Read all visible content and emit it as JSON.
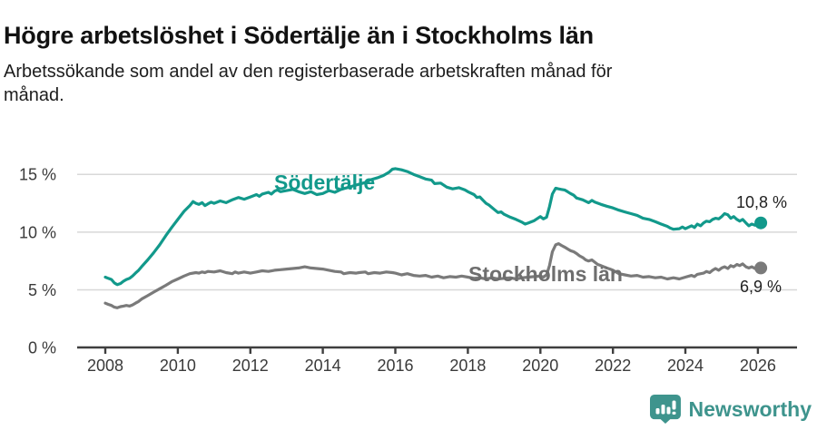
{
  "footer": {
    "brand": "Newsworthy"
  },
  "chart_data": {
    "type": "line",
    "title": "Högre arbetslöshet i Södertälje än i Stockholms län",
    "subtitle_lines": [
      "Arbetssökande som andel av den registerbaserade arbetskraften månad för",
      "månad."
    ],
    "xlabel": "",
    "ylabel": "",
    "xlim": [
      2007.2,
      2027.1
    ],
    "ylim": [
      0,
      17.5
    ],
    "grid": "horizontal",
    "legend_position": "inline-labels",
    "y_ticks": [
      {
        "value": 0,
        "label": "0 %"
      },
      {
        "value": 5,
        "label": "5 %"
      },
      {
        "value": 10,
        "label": "10 %"
      },
      {
        "value": 15,
        "label": "15 %"
      }
    ],
    "x_ticks": [
      2008,
      2010,
      2012,
      2014,
      2016,
      2018,
      2020,
      2022,
      2024,
      2026
    ],
    "series": [
      {
        "name": "Södertälje",
        "color": "#12998b",
        "label_color": "#12998b",
        "end_label": "10,8 %",
        "end_value": 10.8,
        "points": [
          [
            2008.0,
            6.1
          ],
          [
            2008.08,
            6.0
          ],
          [
            2008.17,
            5.9
          ],
          [
            2008.25,
            5.6
          ],
          [
            2008.33,
            5.45
          ],
          [
            2008.42,
            5.55
          ],
          [
            2008.5,
            5.75
          ],
          [
            2008.58,
            5.9
          ],
          [
            2008.67,
            6.0
          ],
          [
            2008.75,
            6.2
          ],
          [
            2008.83,
            6.45
          ],
          [
            2008.92,
            6.7
          ],
          [
            2009.0,
            7.0
          ],
          [
            2009.17,
            7.6
          ],
          [
            2009.33,
            8.2
          ],
          [
            2009.5,
            8.9
          ],
          [
            2009.67,
            9.7
          ],
          [
            2009.83,
            10.4
          ],
          [
            2010.0,
            11.1
          ],
          [
            2010.17,
            11.8
          ],
          [
            2010.33,
            12.3
          ],
          [
            2010.42,
            12.65
          ],
          [
            2010.5,
            12.5
          ],
          [
            2010.58,
            12.4
          ],
          [
            2010.67,
            12.55
          ],
          [
            2010.75,
            12.3
          ],
          [
            2010.83,
            12.45
          ],
          [
            2010.92,
            12.6
          ],
          [
            2011.0,
            12.5
          ],
          [
            2011.17,
            12.7
          ],
          [
            2011.33,
            12.55
          ],
          [
            2011.5,
            12.8
          ],
          [
            2011.67,
            13.0
          ],
          [
            2011.83,
            12.85
          ],
          [
            2012.0,
            13.05
          ],
          [
            2012.17,
            13.25
          ],
          [
            2012.25,
            13.1
          ],
          [
            2012.33,
            13.3
          ],
          [
            2012.5,
            13.45
          ],
          [
            2012.58,
            13.3
          ],
          [
            2012.67,
            13.55
          ],
          [
            2012.75,
            13.65
          ],
          [
            2012.83,
            13.5
          ],
          [
            2013.0,
            13.6
          ],
          [
            2013.17,
            13.7
          ],
          [
            2013.33,
            13.5
          ],
          [
            2013.5,
            13.35
          ],
          [
            2013.67,
            13.5
          ],
          [
            2013.83,
            13.25
          ],
          [
            2014.0,
            13.35
          ],
          [
            2014.17,
            13.6
          ],
          [
            2014.33,
            13.45
          ],
          [
            2014.5,
            13.7
          ],
          [
            2014.67,
            13.85
          ],
          [
            2014.83,
            14.0
          ],
          [
            2015.0,
            14.15
          ],
          [
            2015.17,
            14.3
          ],
          [
            2015.33,
            14.55
          ],
          [
            2015.5,
            14.7
          ],
          [
            2015.67,
            14.9
          ],
          [
            2015.83,
            15.2
          ],
          [
            2015.92,
            15.45
          ],
          [
            2016.0,
            15.5
          ],
          [
            2016.17,
            15.4
          ],
          [
            2016.33,
            15.25
          ],
          [
            2016.5,
            15.0
          ],
          [
            2016.67,
            14.8
          ],
          [
            2016.83,
            14.6
          ],
          [
            2017.0,
            14.5
          ],
          [
            2017.08,
            14.2
          ],
          [
            2017.25,
            14.25
          ],
          [
            2017.42,
            13.9
          ],
          [
            2017.58,
            13.75
          ],
          [
            2017.75,
            13.85
          ],
          [
            2017.92,
            13.65
          ],
          [
            2018.0,
            13.5
          ],
          [
            2018.17,
            13.25
          ],
          [
            2018.25,
            13.0
          ],
          [
            2018.33,
            13.05
          ],
          [
            2018.42,
            12.75
          ],
          [
            2018.5,
            12.5
          ],
          [
            2018.58,
            12.35
          ],
          [
            2018.75,
            11.9
          ],
          [
            2018.83,
            11.7
          ],
          [
            2018.92,
            11.75
          ],
          [
            2019.0,
            11.55
          ],
          [
            2019.17,
            11.3
          ],
          [
            2019.33,
            11.1
          ],
          [
            2019.5,
            10.85
          ],
          [
            2019.58,
            10.7
          ],
          [
            2019.67,
            10.8
          ],
          [
            2019.83,
            11.0
          ],
          [
            2020.0,
            11.35
          ],
          [
            2020.08,
            11.15
          ],
          [
            2020.17,
            11.3
          ],
          [
            2020.25,
            12.2
          ],
          [
            2020.33,
            13.3
          ],
          [
            2020.42,
            13.8
          ],
          [
            2020.5,
            13.75
          ],
          [
            2020.58,
            13.7
          ],
          [
            2020.67,
            13.65
          ],
          [
            2020.75,
            13.5
          ],
          [
            2020.83,
            13.35
          ],
          [
            2020.92,
            13.2
          ],
          [
            2021.0,
            12.95
          ],
          [
            2021.17,
            12.8
          ],
          [
            2021.33,
            12.55
          ],
          [
            2021.42,
            12.75
          ],
          [
            2021.5,
            12.6
          ],
          [
            2021.67,
            12.4
          ],
          [
            2021.83,
            12.25
          ],
          [
            2022.0,
            12.1
          ],
          [
            2022.17,
            11.9
          ],
          [
            2022.33,
            11.75
          ],
          [
            2022.5,
            11.6
          ],
          [
            2022.67,
            11.45
          ],
          [
            2022.83,
            11.2
          ],
          [
            2023.0,
            11.1
          ],
          [
            2023.17,
            10.9
          ],
          [
            2023.33,
            10.7
          ],
          [
            2023.5,
            10.5
          ],
          [
            2023.58,
            10.35
          ],
          [
            2023.67,
            10.25
          ],
          [
            2023.83,
            10.3
          ],
          [
            2023.92,
            10.45
          ],
          [
            2024.0,
            10.3
          ],
          [
            2024.17,
            10.55
          ],
          [
            2024.25,
            10.4
          ],
          [
            2024.33,
            10.7
          ],
          [
            2024.42,
            10.55
          ],
          [
            2024.5,
            10.8
          ],
          [
            2024.58,
            10.95
          ],
          [
            2024.67,
            10.9
          ],
          [
            2024.75,
            11.1
          ],
          [
            2024.83,
            11.2
          ],
          [
            2024.92,
            11.15
          ],
          [
            2025.0,
            11.35
          ],
          [
            2025.08,
            11.6
          ],
          [
            2025.17,
            11.5
          ],
          [
            2025.25,
            11.2
          ],
          [
            2025.33,
            11.35
          ],
          [
            2025.42,
            11.1
          ],
          [
            2025.5,
            10.95
          ],
          [
            2025.58,
            11.1
          ],
          [
            2025.67,
            10.8
          ],
          [
            2025.75,
            10.55
          ],
          [
            2025.83,
            10.7
          ],
          [
            2025.92,
            10.6
          ],
          [
            2026.08,
            10.8
          ]
        ]
      },
      {
        "name": "Stockholms län",
        "color": "#7a7a7a",
        "label_color": "#6e6e6e",
        "end_label": "6,9 %",
        "end_value": 6.9,
        "points": [
          [
            2008.0,
            3.85
          ],
          [
            2008.08,
            3.75
          ],
          [
            2008.17,
            3.65
          ],
          [
            2008.25,
            3.5
          ],
          [
            2008.33,
            3.45
          ],
          [
            2008.42,
            3.55
          ],
          [
            2008.5,
            3.6
          ],
          [
            2008.58,
            3.65
          ],
          [
            2008.67,
            3.6
          ],
          [
            2008.75,
            3.7
          ],
          [
            2008.83,
            3.85
          ],
          [
            2008.92,
            4.0
          ],
          [
            2009.0,
            4.2
          ],
          [
            2009.17,
            4.5
          ],
          [
            2009.33,
            4.8
          ],
          [
            2009.5,
            5.1
          ],
          [
            2009.67,
            5.4
          ],
          [
            2009.83,
            5.7
          ],
          [
            2010.0,
            5.95
          ],
          [
            2010.17,
            6.2
          ],
          [
            2010.33,
            6.4
          ],
          [
            2010.5,
            6.5
          ],
          [
            2010.58,
            6.45
          ],
          [
            2010.67,
            6.55
          ],
          [
            2010.75,
            6.5
          ],
          [
            2010.83,
            6.6
          ],
          [
            2011.0,
            6.55
          ],
          [
            2011.17,
            6.65
          ],
          [
            2011.33,
            6.5
          ],
          [
            2011.5,
            6.4
          ],
          [
            2011.58,
            6.55
          ],
          [
            2011.67,
            6.45
          ],
          [
            2011.83,
            6.55
          ],
          [
            2012.0,
            6.45
          ],
          [
            2012.17,
            6.55
          ],
          [
            2012.33,
            6.65
          ],
          [
            2012.5,
            6.6
          ],
          [
            2012.67,
            6.7
          ],
          [
            2012.83,
            6.75
          ],
          [
            2013.0,
            6.8
          ],
          [
            2013.17,
            6.85
          ],
          [
            2013.33,
            6.9
          ],
          [
            2013.5,
            7.0
          ],
          [
            2013.58,
            6.95
          ],
          [
            2013.67,
            6.9
          ],
          [
            2013.83,
            6.85
          ],
          [
            2014.0,
            6.8
          ],
          [
            2014.17,
            6.7
          ],
          [
            2014.33,
            6.6
          ],
          [
            2014.5,
            6.55
          ],
          [
            2014.58,
            6.4
          ],
          [
            2014.75,
            6.5
          ],
          [
            2014.92,
            6.45
          ],
          [
            2015.0,
            6.5
          ],
          [
            2015.17,
            6.55
          ],
          [
            2015.25,
            6.4
          ],
          [
            2015.42,
            6.5
          ],
          [
            2015.58,
            6.45
          ],
          [
            2015.75,
            6.55
          ],
          [
            2015.92,
            6.5
          ],
          [
            2016.0,
            6.45
          ],
          [
            2016.17,
            6.3
          ],
          [
            2016.33,
            6.4
          ],
          [
            2016.5,
            6.25
          ],
          [
            2016.67,
            6.2
          ],
          [
            2016.83,
            6.25
          ],
          [
            2017.0,
            6.1
          ],
          [
            2017.17,
            6.2
          ],
          [
            2017.33,
            6.05
          ],
          [
            2017.5,
            6.15
          ],
          [
            2017.67,
            6.1
          ],
          [
            2017.83,
            6.2
          ],
          [
            2018.0,
            6.1
          ],
          [
            2018.17,
            6.0
          ],
          [
            2018.33,
            6.05
          ],
          [
            2018.5,
            5.95
          ],
          [
            2018.67,
            6.05
          ],
          [
            2018.83,
            5.95
          ],
          [
            2019.0,
            6.0
          ],
          [
            2019.17,
            6.05
          ],
          [
            2019.33,
            5.95
          ],
          [
            2019.5,
            6.05
          ],
          [
            2019.67,
            6.1
          ],
          [
            2019.83,
            6.15
          ],
          [
            2020.0,
            6.2
          ],
          [
            2020.08,
            6.1
          ],
          [
            2020.17,
            6.3
          ],
          [
            2020.25,
            7.1
          ],
          [
            2020.33,
            8.3
          ],
          [
            2020.42,
            8.9
          ],
          [
            2020.5,
            9.0
          ],
          [
            2020.58,
            8.85
          ],
          [
            2020.67,
            8.7
          ],
          [
            2020.75,
            8.55
          ],
          [
            2020.83,
            8.4
          ],
          [
            2020.92,
            8.3
          ],
          [
            2021.0,
            8.15
          ],
          [
            2021.08,
            7.95
          ],
          [
            2021.17,
            7.8
          ],
          [
            2021.25,
            7.6
          ],
          [
            2021.33,
            7.5
          ],
          [
            2021.42,
            7.6
          ],
          [
            2021.5,
            7.4
          ],
          [
            2021.58,
            7.2
          ],
          [
            2021.67,
            7.1
          ],
          [
            2021.75,
            7.0
          ],
          [
            2021.83,
            6.9
          ],
          [
            2021.92,
            6.8
          ],
          [
            2022.0,
            6.7
          ],
          [
            2022.17,
            6.4
          ],
          [
            2022.33,
            6.3
          ],
          [
            2022.5,
            6.2
          ],
          [
            2022.67,
            6.25
          ],
          [
            2022.83,
            6.1
          ],
          [
            2023.0,
            6.15
          ],
          [
            2023.17,
            6.05
          ],
          [
            2023.33,
            6.1
          ],
          [
            2023.5,
            5.95
          ],
          [
            2023.67,
            6.05
          ],
          [
            2023.83,
            5.95
          ],
          [
            2024.0,
            6.1
          ],
          [
            2024.17,
            6.25
          ],
          [
            2024.25,
            6.15
          ],
          [
            2024.33,
            6.35
          ],
          [
            2024.5,
            6.45
          ],
          [
            2024.58,
            6.6
          ],
          [
            2024.67,
            6.5
          ],
          [
            2024.75,
            6.7
          ],
          [
            2024.83,
            6.85
          ],
          [
            2024.92,
            6.7
          ],
          [
            2025.0,
            6.9
          ],
          [
            2025.08,
            7.0
          ],
          [
            2025.17,
            6.85
          ],
          [
            2025.25,
            7.1
          ],
          [
            2025.33,
            7.0
          ],
          [
            2025.42,
            7.2
          ],
          [
            2025.5,
            7.1
          ],
          [
            2025.58,
            7.25
          ],
          [
            2025.67,
            7.0
          ],
          [
            2025.75,
            6.9
          ],
          [
            2025.83,
            7.0
          ],
          [
            2025.92,
            6.85
          ],
          [
            2026.08,
            6.9
          ]
        ]
      }
    ]
  }
}
